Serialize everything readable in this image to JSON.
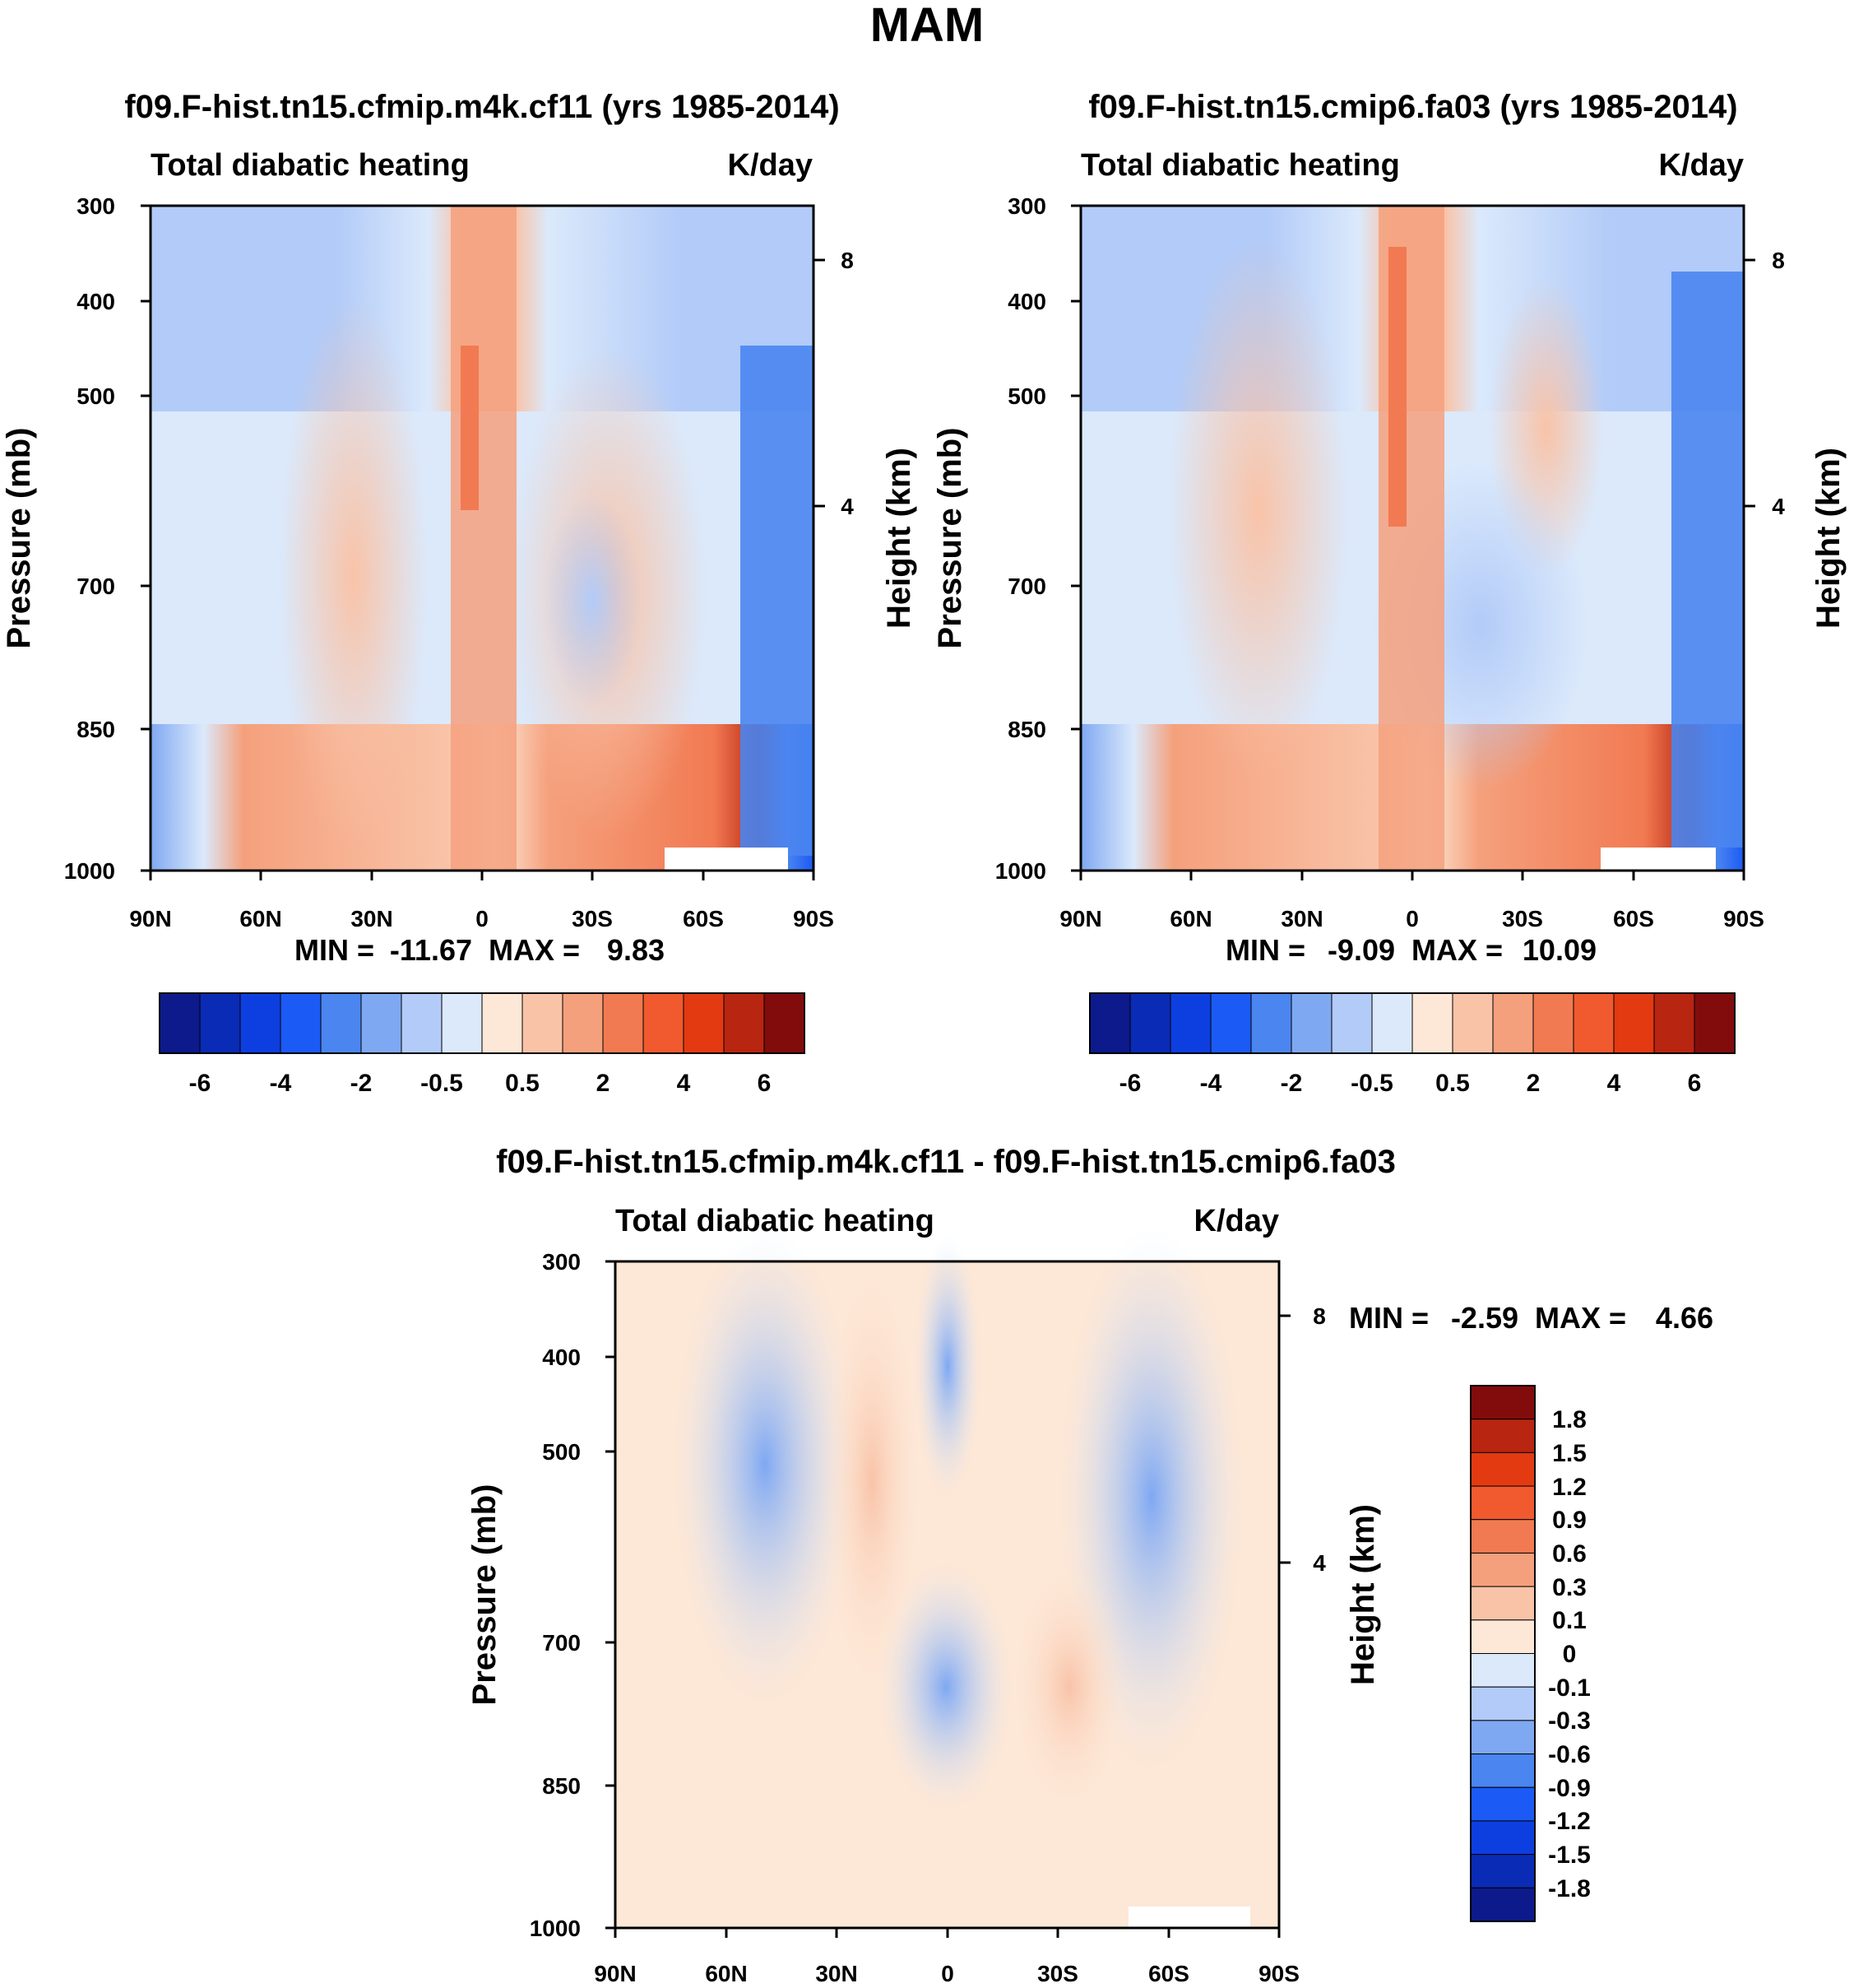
{
  "figure_title": "MAM",
  "chart_data": [
    {
      "type": "heatmap",
      "panel": "top-left",
      "title": "f09.F-hist.tn15.cfmip.m4k.cf11 (yrs 1985-2014)",
      "variable": "Total diabatic heating",
      "units": "K/day",
      "ylabel": "Pressure (mb)",
      "ylabel_right": "Height (km)",
      "xticks": [
        "90N",
        "60N",
        "30N",
        "0",
        "30S",
        "60S",
        "90S"
      ],
      "xlim": [
        90,
        -90
      ],
      "yticks": [
        "300",
        "400",
        "500",
        "700",
        "850",
        "1000"
      ],
      "yticks_right": [
        "8",
        "4"
      ],
      "ylim": [
        1000,
        300
      ],
      "stats_min_label": "MIN =",
      "stats_min_value": "-11.67",
      "stats_max_label": "MAX =",
      "stats_max_value": "9.83",
      "min": -11.67,
      "max": 9.83,
      "colorbar_labels": [
        "-6",
        "-4",
        "-2",
        "-0.5",
        "0.5",
        "2",
        "4",
        "6"
      ]
    },
    {
      "type": "heatmap",
      "panel": "top-right",
      "title": "f09.F-hist.tn15.cmip6.fa03 (yrs 1985-2014)",
      "variable": "Total diabatic heating",
      "units": "K/day",
      "ylabel": "Pressure (mb)",
      "ylabel_right": "Height (km)",
      "xticks": [
        "90N",
        "60N",
        "30N",
        "0",
        "30S",
        "60S",
        "90S"
      ],
      "xlim": [
        90,
        -90
      ],
      "yticks": [
        "300",
        "400",
        "500",
        "700",
        "850",
        "1000"
      ],
      "yticks_right": [
        "8",
        "4"
      ],
      "ylim": [
        1000,
        300
      ],
      "stats_min_label": "MIN =",
      "stats_min_value": "-9.09",
      "stats_max_label": "MAX =",
      "stats_max_value": "10.09",
      "min": -9.09,
      "max": 10.09,
      "colorbar_labels": [
        "-6",
        "-4",
        "-2",
        "-0.5",
        "0.5",
        "2",
        "4",
        "6"
      ]
    },
    {
      "type": "heatmap",
      "panel": "bottom",
      "title": "f09.F-hist.tn15.cfmip.m4k.cf11 - f09.F-hist.tn15.cmip6.fa03",
      "variable": "Total diabatic heating",
      "units": "K/day",
      "ylabel": "Pressure (mb)",
      "ylabel_right": "Height (km)",
      "xticks": [
        "90N",
        "60N",
        "30N",
        "0",
        "30S",
        "60S",
        "90S"
      ],
      "xlim": [
        90,
        -90
      ],
      "yticks": [
        "300",
        "400",
        "500",
        "700",
        "850",
        "1000"
      ],
      "yticks_right": [
        "8",
        "4"
      ],
      "ylim": [
        1000,
        300
      ],
      "stats_min_label": "MIN =",
      "stats_min_value": "-2.59",
      "stats_max_label": "MAX =",
      "stats_max_value": "4.66",
      "min": -2.59,
      "max": 4.66,
      "colorbar_labels": [
        "1.8",
        "1.5",
        "1.2",
        "0.9",
        "0.6",
        "0.3",
        "0.1",
        "0",
        "-0.1",
        "-0.3",
        "-0.6",
        "-0.9",
        "-1.2",
        "-1.5",
        "-1.8"
      ]
    }
  ],
  "colors": {
    "top_colorbar": [
      "#0c1a8c",
      "#0a2bb5",
      "#0d3fe0",
      "#1b5af4",
      "#4a85f0",
      "#7fa8f2",
      "#b2cbf8",
      "#dbe9fb",
      "#fde7d6",
      "#f9c3a8",
      "#f5a07c",
      "#f17a52",
      "#f05a2e",
      "#e33a12",
      "#b82510",
      "#820c0c"
    ],
    "diff_colorbar": [
      "#820c0c",
      "#b82510",
      "#e33a12",
      "#f05a2e",
      "#f17a52",
      "#f5a07c",
      "#f9c3a8",
      "#fde7d6",
      "#dbe9fb",
      "#b2cbf8",
      "#7fa8f2",
      "#4a85f0",
      "#1b5af4",
      "#0d3fe0",
      "#0a2bb5",
      "#0c1a8c"
    ]
  }
}
